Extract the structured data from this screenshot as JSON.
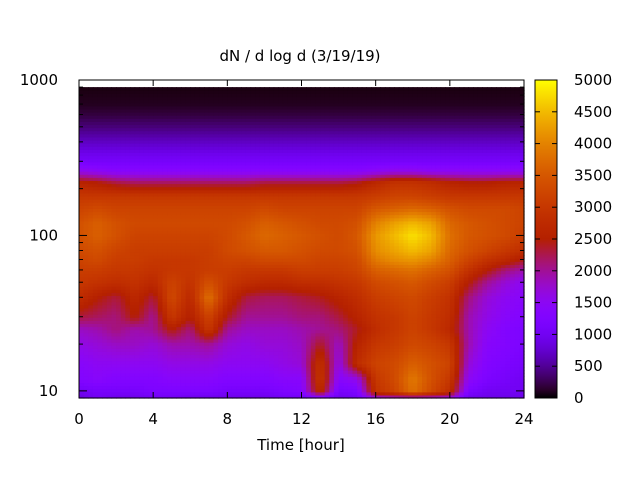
{
  "chart_data": {
    "type": "heatmap",
    "title": "dN / d log d (3/19/19)",
    "xlabel": "Time [hour]",
    "ylabel": "",
    "xlim": [
      0,
      24
    ],
    "ylim": [
      9,
      1000
    ],
    "yscale": "log",
    "x_ticks": [
      "0",
      "4",
      "8",
      "12",
      "16",
      "20",
      "24"
    ],
    "y_ticks": [
      "10",
      "100",
      "1000"
    ],
    "data_x_range": [
      0,
      24
    ],
    "data_y_range": [
      9,
      900
    ],
    "colorbar": {
      "range": [
        0,
        5000
      ],
      "ticks": [
        "0",
        "500",
        "1000",
        "1500",
        "2000",
        "2500",
        "3000",
        "3500",
        "4000",
        "4500",
        "5000"
      ],
      "palette": "gnuplot-pm3d-black-purple-red-orange-yellow"
    },
    "x_hours": [
      0,
      1,
      2,
      3,
      4,
      5,
      6,
      7,
      8,
      9,
      10,
      11,
      12,
      13,
      14,
      15,
      16,
      17,
      18,
      19,
      20,
      21,
      22,
      23,
      24
    ],
    "diameter_nm": [
      9,
      10,
      12,
      15,
      20,
      25,
      30,
      40,
      50,
      60,
      70,
      80,
      100,
      120,
      150,
      180,
      220,
      260,
      300,
      400,
      500,
      600,
      700,
      900
    ],
    "z_values": [
      [
        800,
        1000,
        900,
        900,
        1000,
        1000,
        900,
        900,
        900,
        900,
        900,
        1000,
        1000,
        1100,
        900,
        1000,
        1600,
        1700,
        1700,
        1700,
        1600,
        900,
        900,
        900,
        900
      ],
      [
        1000,
        1100,
        1100,
        1100,
        1200,
        1200,
        1200,
        1200,
        1100,
        1100,
        1100,
        1200,
        1300,
        2800,
        1100,
        1200,
        2900,
        3200,
        3800,
        3300,
        2800,
        1200,
        1000,
        1000,
        1000
      ],
      [
        1300,
        1400,
        1300,
        1300,
        1300,
        1400,
        1400,
        1400,
        1300,
        1300,
        1300,
        1400,
        1400,
        3000,
        1400,
        1600,
        3000,
        3300,
        3900,
        3400,
        3000,
        1500,
        1200,
        1100,
        1000
      ],
      [
        1400,
        1500,
        1500,
        1500,
        1500,
        1600,
        1600,
        1600,
        1500,
        1500,
        1500,
        1600,
        1700,
        2900,
        1600,
        2800,
        3200,
        3300,
        3600,
        3400,
        3200,
        1700,
        1300,
        1200,
        1100
      ],
      [
        1600,
        1700,
        1800,
        1800,
        1700,
        1900,
        1900,
        2000,
        1700,
        1600,
        1700,
        1700,
        1800,
        2400,
        1800,
        2600,
        3000,
        3100,
        3300,
        3200,
        3000,
        1900,
        1400,
        1300,
        1200
      ],
      [
        1800,
        1900,
        2100,
        1900,
        2000,
        2500,
        2100,
        3000,
        2000,
        1800,
        1800,
        1800,
        1900,
        2000,
        2100,
        2400,
        2800,
        3000,
        3200,
        3000,
        2700,
        1900,
        1500,
        1300,
        1200
      ],
      [
        2300,
        2200,
        2100,
        2500,
        2000,
        3000,
        2500,
        3200,
        2400,
        2000,
        2000,
        2000,
        2100,
        2100,
        2300,
        2600,
        2900,
        3000,
        3200,
        3000,
        2800,
        1900,
        1600,
        1400,
        1300
      ],
      [
        2800,
        2500,
        2300,
        2700,
        2300,
        3300,
        2700,
        3800,
        2800,
        2300,
        2200,
        2200,
        2300,
        2400,
        2600,
        2800,
        3100,
        3200,
        3300,
        3100,
        2900,
        2100,
        1700,
        1500,
        1400
      ],
      [
        3000,
        2900,
        2800,
        2900,
        2700,
        3200,
        2900,
        3400,
        3000,
        2800,
        2700,
        2700,
        2800,
        2800,
        2900,
        3000,
        3300,
        3400,
        3500,
        3300,
        3100,
        2500,
        2000,
        1700,
        1500
      ],
      [
        3100,
        3100,
        3000,
        3000,
        2900,
        3000,
        3000,
        3100,
        3100,
        3000,
        3000,
        3000,
        3100,
        3100,
        3100,
        3200,
        3600,
        3700,
        3800,
        3600,
        3400,
        2900,
        2500,
        2100,
        1900
      ],
      [
        3200,
        3300,
        3100,
        3100,
        3000,
        3000,
        3000,
        3100,
        3200,
        3200,
        3300,
        3300,
        3300,
        3200,
        3200,
        3300,
        3900,
        4100,
        4200,
        4000,
        3600,
        3200,
        2900,
        2700,
        2400
      ],
      [
        3300,
        3400,
        3200,
        3100,
        3100,
        3100,
        3100,
        3100,
        3300,
        3400,
        3500,
        3500,
        3400,
        3300,
        3300,
        3400,
        4100,
        4300,
        4500,
        4300,
        3700,
        3400,
        3200,
        3000,
        2800
      ],
      [
        3400,
        3600,
        3400,
        3200,
        3200,
        3200,
        3200,
        3200,
        3300,
        3500,
        3700,
        3600,
        3500,
        3400,
        3300,
        3500,
        4200,
        4500,
        4800,
        4500,
        3800,
        3500,
        3400,
        3300,
        3100
      ],
      [
        3400,
        3600,
        3400,
        3300,
        3300,
        3300,
        3300,
        3300,
        3300,
        3400,
        3600,
        3500,
        3400,
        3300,
        3300,
        3400,
        4000,
        4300,
        4500,
        4300,
        3700,
        3500,
        3400,
        3300,
        3200
      ],
      [
        3200,
        3300,
        3200,
        3200,
        3200,
        3200,
        3200,
        3200,
        3200,
        3200,
        3300,
        3200,
        3200,
        3200,
        3200,
        3200,
        3500,
        3600,
        3700,
        3600,
        3400,
        3300,
        3300,
        3300,
        3200
      ],
      [
        3000,
        3000,
        3000,
        3000,
        3000,
        3000,
        3000,
        3000,
        3000,
        3000,
        3000,
        3000,
        3000,
        3000,
        3000,
        3000,
        3100,
        3200,
        3200,
        3100,
        3000,
        3000,
        3000,
        3000,
        3000
      ],
      [
        2600,
        2500,
        2300,
        2200,
        2200,
        2200,
        2200,
        2200,
        2200,
        2200,
        2300,
        2300,
        2300,
        2300,
        2300,
        2400,
        2700,
        2900,
        2900,
        2800,
        2600,
        2500,
        2500,
        2600,
        2600
      ],
      [
        1600,
        1500,
        1400,
        1400,
        1400,
        1400,
        1400,
        1400,
        1400,
        1400,
        1400,
        1400,
        1400,
        1400,
        1400,
        1400,
        1500,
        1600,
        1600,
        1500,
        1500,
        1500,
        1500,
        1500,
        1500
      ],
      [
        1100,
        1100,
        1100,
        1100,
        1100,
        1100,
        1100,
        1100,
        1100,
        1100,
        1100,
        1100,
        1100,
        1100,
        1100,
        1100,
        1100,
        1100,
        1100,
        1100,
        1100,
        1100,
        1100,
        1100,
        1100
      ],
      [
        700,
        700,
        700,
        700,
        700,
        700,
        700,
        700,
        700,
        700,
        700,
        700,
        700,
        700,
        700,
        700,
        700,
        700,
        700,
        700,
        700,
        700,
        700,
        700,
        700
      ],
      [
        400,
        400,
        400,
        400,
        400,
        400,
        400,
        400,
        400,
        400,
        400,
        400,
        400,
        400,
        400,
        400,
        400,
        400,
        400,
        400,
        400,
        400,
        400,
        400,
        400
      ],
      [
        200,
        200,
        200,
        200,
        200,
        200,
        200,
        200,
        200,
        200,
        200,
        200,
        200,
        200,
        200,
        200,
        200,
        200,
        200,
        200,
        200,
        200,
        200,
        200,
        200
      ],
      [
        100,
        100,
        100,
        100,
        100,
        100,
        100,
        100,
        100,
        100,
        100,
        100,
        100,
        100,
        100,
        100,
        100,
        100,
        100,
        100,
        100,
        100,
        100,
        100,
        100
      ],
      [
        50,
        50,
        50,
        50,
        50,
        50,
        50,
        50,
        50,
        50,
        50,
        50,
        50,
        50,
        50,
        50,
        50,
        50,
        50,
        50,
        50,
        50,
        50,
        50,
        50
      ]
    ]
  }
}
